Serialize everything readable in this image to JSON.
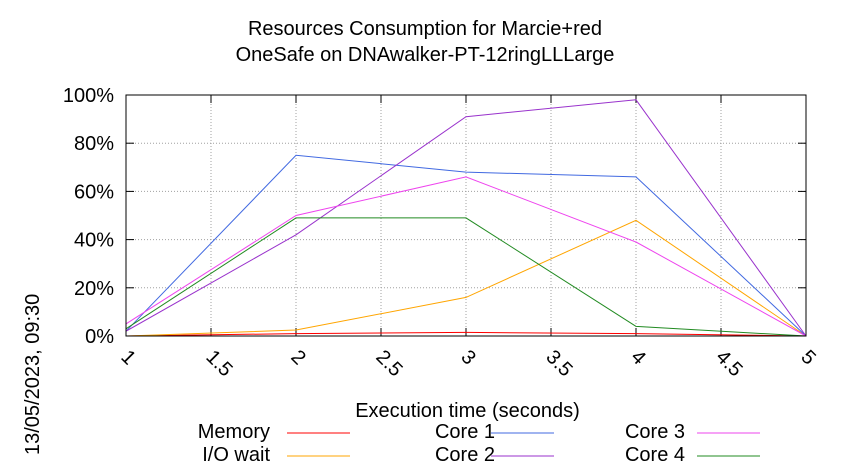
{
  "chart_data": {
    "type": "line",
    "title": "Resources Consumption for Marcie+red",
    "subtitle": "OneSafe on DNAwalker-PT-12ringLLLarge",
    "xlabel": "Execution time (seconds)",
    "ylabel": "",
    "side_label": "13/05/2023, 09:30",
    "x": [
      1,
      2,
      3,
      4,
      5
    ],
    "xlim": [
      1,
      5
    ],
    "ylim": [
      0,
      100
    ],
    "x_ticks": [
      "1",
      "1.5",
      "2",
      "2.5",
      "3",
      "3.5",
      "4",
      "4.5",
      "5"
    ],
    "y_ticks": [
      "0%",
      "20%",
      "40%",
      "60%",
      "80%",
      "100%"
    ],
    "grid": true,
    "legend_position": "bottom",
    "series": [
      {
        "name": "Memory",
        "color": "#ff0000",
        "values": [
          0,
          1,
          1.5,
          1,
          0
        ]
      },
      {
        "name": "I/O wait",
        "color": "#ffa500",
        "values": [
          0,
          2.5,
          16,
          48,
          0
        ]
      },
      {
        "name": "Core 1",
        "color": "#4169e1",
        "values": [
          2,
          75,
          68,
          66,
          0
        ]
      },
      {
        "name": "Core 2",
        "color": "#9932cc",
        "values": [
          2,
          42,
          91,
          98,
          0
        ]
      },
      {
        "name": "Core 3",
        "color": "#ee44ee",
        "values": [
          5,
          50,
          66,
          39,
          0
        ]
      },
      {
        "name": "Core 4",
        "color": "#228b22",
        "values": [
          3,
          49,
          49,
          4,
          0
        ]
      }
    ]
  }
}
